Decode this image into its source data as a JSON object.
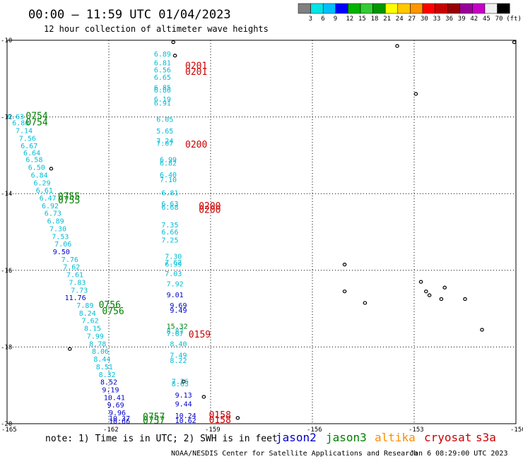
{
  "header": {
    "title": "00:00 – 11:59 UTC 01/04/2023",
    "subtitle": "12 hour collection of altimeter wave heights"
  },
  "colorbar": {
    "labels": [
      "3",
      "6",
      "9",
      "12",
      "15",
      "18",
      "21",
      "24",
      "27",
      "30",
      "33",
      "36",
      "39",
      "42",
      "45",
      "70"
    ],
    "unit": "(ft)",
    "colors": [
      "#808080",
      "#00e5e5",
      "#00bfff",
      "#0000ff",
      "#00b400",
      "#33cc33",
      "#009600",
      "#ffff00",
      "#ffc800",
      "#ff9600",
      "#ff0000",
      "#c80000",
      "#960000",
      "#990099",
      "#c800c8",
      "#f0f0f0",
      "#000000"
    ]
  },
  "axes": {
    "lat_labels": [
      "-10",
      "-12",
      "-14",
      "-16",
      "-18",
      "-20"
    ],
    "lon_labels": [
      "-165",
      "-162",
      "-159",
      "-156",
      "-153",
      "-150"
    ]
  },
  "map": {
    "lon_range": [
      -165,
      -150
    ],
    "lat_range": [
      -20,
      -10
    ],
    "graticule": "dotted"
  },
  "series_colors": {
    "jason2": "#0000cc",
    "jason3": "#008000",
    "altika": "#ff8c00",
    "cryosat": "#cc0000",
    "s3a": "#cc0000",
    "cyan": "#00bcd4"
  },
  "swh_readings": [
    {
      "v": "6.89",
      "lon": -160.67,
      "lat": -10.42,
      "c": "cyan"
    },
    {
      "v": "6.81",
      "lon": -160.67,
      "lat": -10.65,
      "c": "cyan"
    },
    {
      "v": "6.56",
      "lon": -160.67,
      "lat": -10.84,
      "c": "cyan"
    },
    {
      "v": "6.65",
      "lon": -160.67,
      "lat": -11.03,
      "c": "cyan"
    },
    {
      "v": "6.85",
      "lon": -160.67,
      "lat": -11.3,
      "c": "cyan"
    },
    {
      "v": "6.86",
      "lon": -160.67,
      "lat": -11.36,
      "c": "cyan"
    },
    {
      "v": "6.19",
      "lon": -160.67,
      "lat": -11.6,
      "c": "cyan"
    },
    {
      "v": "6.91",
      "lon": -160.67,
      "lat": -11.7,
      "c": "cyan"
    },
    {
      "v": "6.05",
      "lon": -160.6,
      "lat": -12.13,
      "c": "cyan"
    },
    {
      "v": "5.65",
      "lon": -160.6,
      "lat": -12.43,
      "c": "cyan"
    },
    {
      "v": "7.24",
      "lon": -160.6,
      "lat": -12.69,
      "c": "cyan"
    },
    {
      "v": "7.07",
      "lon": -160.6,
      "lat": -12.75,
      "c": "cyan"
    },
    {
      "v": "6.99",
      "lon": -160.5,
      "lat": -13.18,
      "c": "cyan"
    },
    {
      "v": "6.82",
      "lon": -160.5,
      "lat": -13.27,
      "c": "cyan"
    },
    {
      "v": "6.40",
      "lon": -160.5,
      "lat": -13.57,
      "c": "cyan"
    },
    {
      "v": "7.10",
      "lon": -160.5,
      "lat": -13.7,
      "c": "cyan"
    },
    {
      "v": "6.81",
      "lon": -160.45,
      "lat": -14.04,
      "c": "cyan"
    },
    {
      "v": "6.63",
      "lon": -160.45,
      "lat": -14.33,
      "c": "cyan"
    },
    {
      "v": "6.68",
      "lon": -160.45,
      "lat": -14.42,
      "c": "cyan"
    },
    {
      "v": "7.35",
      "lon": -160.45,
      "lat": -14.88,
      "c": "cyan"
    },
    {
      "v": "6.66",
      "lon": -160.45,
      "lat": -15.06,
      "c": "cyan"
    },
    {
      "v": "7.25",
      "lon": -160.45,
      "lat": -15.28,
      "c": "cyan"
    },
    {
      "v": "7.30",
      "lon": -160.35,
      "lat": -15.7,
      "c": "cyan"
    },
    {
      "v": "7.62",
      "lon": -160.35,
      "lat": -15.86,
      "c": "cyan"
    },
    {
      "v": "6.99",
      "lon": -160.35,
      "lat": -15.9,
      "c": "cyan"
    },
    {
      "v": "7.03",
      "lon": -160.35,
      "lat": -16.15,
      "c": "cyan"
    },
    {
      "v": "7.92",
      "lon": -160.3,
      "lat": -16.42,
      "c": "cyan"
    },
    {
      "v": "9.01",
      "lon": -160.3,
      "lat": -16.7,
      "c": "jason2"
    },
    {
      "v": "9.69",
      "lon": -160.2,
      "lat": -16.98,
      "c": "jason2"
    },
    {
      "v": "9.49",
      "lon": -160.2,
      "lat": -17.11,
      "c": "jason2"
    },
    {
      "v": "15.32",
      "lon": -160.3,
      "lat": -17.52,
      "c": "jason3"
    },
    {
      "v": "8.87",
      "lon": -160.3,
      "lat": -17.65,
      "c": "cyan"
    },
    {
      "v": "7.67",
      "lon": -160.3,
      "lat": -17.72,
      "c": "cyan"
    },
    {
      "v": "8.40",
      "lon": -160.2,
      "lat": -17.98,
      "c": "cyan"
    },
    {
      "v": "7.49",
      "lon": -160.2,
      "lat": -18.28,
      "c": "cyan"
    },
    {
      "v": "8.22",
      "lon": -160.2,
      "lat": -18.42,
      "c": "cyan"
    },
    {
      "v": "7.26",
      "lon": -160.15,
      "lat": -18.96,
      "c": "cyan"
    },
    {
      "v": "8.63",
      "lon": -160.15,
      "lat": -19.02,
      "c": "cyan"
    },
    {
      "v": "9.13",
      "lon": -160.05,
      "lat": -19.32,
      "c": "jason2"
    },
    {
      "v": "9.44",
      "lon": -160.05,
      "lat": -19.55,
      "c": "jason2"
    },
    {
      "v": "10.24",
      "lon": -160.05,
      "lat": -19.85,
      "c": "jason2"
    },
    {
      "v": "10.62",
      "lon": -160.05,
      "lat": -19.98,
      "c": "jason2"
    },
    {
      "v": "6.63",
      "lon": -165.0,
      "lat": -12.05,
      "c": "cyan"
    },
    {
      "v": "6.86",
      "lon": -164.85,
      "lat": -12.22,
      "c": "cyan"
    },
    {
      "v": "7.14",
      "lon": -164.75,
      "lat": -12.42,
      "c": "cyan"
    },
    {
      "v": "7.56",
      "lon": -164.65,
      "lat": -12.62,
      "c": "cyan"
    },
    {
      "v": "6.67",
      "lon": -164.6,
      "lat": -12.82,
      "c": "cyan"
    },
    {
      "v": "6.64",
      "lon": -164.52,
      "lat": -13.0,
      "c": "cyan"
    },
    {
      "v": "6.58",
      "lon": -164.45,
      "lat": -13.18,
      "c": "cyan"
    },
    {
      "v": "6.50",
      "lon": -164.38,
      "lat": -13.38,
      "c": "cyan"
    },
    {
      "v": "6.84",
      "lon": -164.3,
      "lat": -13.58,
      "c": "cyan"
    },
    {
      "v": "6.29",
      "lon": -164.22,
      "lat": -13.78,
      "c": "cyan"
    },
    {
      "v": "6.61",
      "lon": -164.15,
      "lat": -13.98,
      "c": "cyan"
    },
    {
      "v": "6.47",
      "lon": -164.05,
      "lat": -14.18,
      "c": "cyan"
    },
    {
      "v": "6.92",
      "lon": -163.98,
      "lat": -14.38,
      "c": "cyan"
    },
    {
      "v": "6.73",
      "lon": -163.9,
      "lat": -14.58,
      "c": "cyan"
    },
    {
      "v": "6.89",
      "lon": -163.82,
      "lat": -14.78,
      "c": "cyan"
    },
    {
      "v": "7.30",
      "lon": -163.75,
      "lat": -14.98,
      "c": "cyan"
    },
    {
      "v": "7.53",
      "lon": -163.68,
      "lat": -15.18,
      "c": "cyan"
    },
    {
      "v": "7.06",
      "lon": -163.6,
      "lat": -15.38,
      "c": "cyan"
    },
    {
      "v": "9.50",
      "lon": -163.65,
      "lat": -15.58,
      "c": "jason2"
    },
    {
      "v": "7.76",
      "lon": -163.4,
      "lat": -15.78,
      "c": "cyan"
    },
    {
      "v": "7.62",
      "lon": -163.35,
      "lat": -15.98,
      "c": "cyan"
    },
    {
      "v": "7.61",
      "lon": -163.25,
      "lat": -16.18,
      "c": "cyan"
    },
    {
      "v": "7.83",
      "lon": -163.18,
      "lat": -16.38,
      "c": "cyan"
    },
    {
      "v": "7.73",
      "lon": -163.12,
      "lat": -16.58,
      "c": "cyan"
    },
    {
      "v": "11.76",
      "lon": -163.3,
      "lat": -16.78,
      "c": "jason2"
    },
    {
      "v": "7.89",
      "lon": -162.95,
      "lat": -16.98,
      "c": "cyan"
    },
    {
      "v": "8.24",
      "lon": -162.88,
      "lat": -17.18,
      "c": "cyan"
    },
    {
      "v": "7.62",
      "lon": -162.8,
      "lat": -17.38,
      "c": "cyan"
    },
    {
      "v": "8.15",
      "lon": -162.73,
      "lat": -17.58,
      "c": "cyan"
    },
    {
      "v": "7.99",
      "lon": -162.65,
      "lat": -17.78,
      "c": "cyan"
    },
    {
      "v": "8.78",
      "lon": -162.58,
      "lat": -17.98,
      "c": "cyan"
    },
    {
      "v": "8.06",
      "lon": -162.5,
      "lat": -18.18,
      "c": "cyan"
    },
    {
      "v": "8.44",
      "lon": -162.45,
      "lat": -18.38,
      "c": "cyan"
    },
    {
      "v": "8.51",
      "lon": -162.38,
      "lat": -18.58,
      "c": "cyan"
    },
    {
      "v": "8.32",
      "lon": -162.3,
      "lat": -18.78,
      "c": "cyan"
    },
    {
      "v": "8.52",
      "lon": -162.25,
      "lat": -18.98,
      "c": "jason2"
    },
    {
      "v": "9.19",
      "lon": -162.2,
      "lat": -19.18,
      "c": "jason2"
    },
    {
      "v": "10.41",
      "lon": -162.15,
      "lat": -19.38,
      "c": "jason2"
    },
    {
      "v": "9.69",
      "lon": -162.05,
      "lat": -19.58,
      "c": "jason2"
    },
    {
      "v": "9.96",
      "lon": -162.0,
      "lat": -19.78,
      "c": "jason2"
    },
    {
      "v": "10.37",
      "lon": -162.0,
      "lat": -19.93,
      "c": "jason2"
    },
    {
      "v": "10.66",
      "lon": -162.0,
      "lat": -20.0,
      "c": "jason2"
    }
  ],
  "pass_labels": [
    {
      "v": "0201",
      "lon": -159.75,
      "lat": -10.75,
      "c": "cryosat"
    },
    {
      "v": "0201",
      "lon": -159.75,
      "lat": -10.9,
      "c": "cryosat"
    },
    {
      "v": "0200",
      "lon": -159.75,
      "lat": -12.8,
      "c": "cryosat"
    },
    {
      "v": "0200",
      "lon": -159.35,
      "lat": -14.4,
      "c": "cryosat"
    },
    {
      "v": "0200",
      "lon": -159.35,
      "lat": -14.5,
      "c": "cryosat"
    },
    {
      "v": "0159",
      "lon": -159.65,
      "lat": -17.75,
      "c": "cryosat"
    },
    {
      "v": "0158",
      "lon": -159.05,
      "lat": -19.85,
      "c": "cryosat"
    },
    {
      "v": "0158",
      "lon": -159.05,
      "lat": -19.98,
      "c": "cryosat"
    },
    {
      "v": "0754",
      "lon": -164.45,
      "lat": -12.05,
      "c": "jason3"
    },
    {
      "v": "0754",
      "lon": -164.45,
      "lat": -12.22,
      "c": "jason3"
    },
    {
      "v": "0755",
      "lon": -163.5,
      "lat": -14.15,
      "c": "jason3"
    },
    {
      "v": "0755",
      "lon": -163.5,
      "lat": -14.25,
      "c": "jason3"
    },
    {
      "v": "0756",
      "lon": -162.3,
      "lat": -16.98,
      "c": "jason3"
    },
    {
      "v": "0756",
      "lon": -162.2,
      "lat": -17.15,
      "c": "jason3"
    },
    {
      "v": "0757",
      "lon": -161.0,
      "lat": -19.9,
      "c": "jason3"
    },
    {
      "v": "0757",
      "lon": -161.0,
      "lat": -20.0,
      "c": "jason3"
    }
  ],
  "islands": [
    {
      "lon": -160.1,
      "lat": -10.05
    },
    {
      "lon": -160.05,
      "lat": -10.4
    },
    {
      "lon": -163.7,
      "lat": -13.35
    },
    {
      "lon": -153.5,
      "lat": -10.15
    },
    {
      "lon": -150.05,
      "lat": -10.05
    },
    {
      "lon": -152.95,
      "lat": -11.4
    },
    {
      "lon": -155.05,
      "lat": -15.85
    },
    {
      "lon": -155.05,
      "lat": -16.55
    },
    {
      "lon": -154.45,
      "lat": -16.85
    },
    {
      "lon": -152.1,
      "lat": -16.45
    },
    {
      "lon": -152.8,
      "lat": -16.3
    },
    {
      "lon": -152.65,
      "lat": -16.55
    },
    {
      "lon": -152.2,
      "lat": -16.75
    },
    {
      "lon": -151.5,
      "lat": -16.75
    },
    {
      "lon": -152.55,
      "lat": -16.65
    },
    {
      "lon": -151.0,
      "lat": -17.55
    },
    {
      "lon": -163.15,
      "lat": -18.05
    },
    {
      "lon": -159.8,
      "lat": -18.9
    },
    {
      "lon": -159.2,
      "lat": -19.3
    },
    {
      "lon": -158.2,
      "lat": -19.85
    }
  ],
  "footer": {
    "note": "note: 1) Time is in UTC; 2) SWH is in feet",
    "sat_jason2": "jason2",
    "sat_jason3": "jason3",
    "sat_altika": "altika",
    "sat_cryosat": "cryosat",
    "sat_s3a": "s3a",
    "credit": "NOAA/NESDIS Center for Satellite Applications and Research",
    "timestamp": "Jan  6 08:29:00 UTC 2023"
  }
}
